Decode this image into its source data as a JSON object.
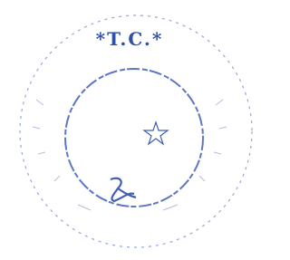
{
  "seal": {
    "top_text": "*T.C.*"
  }
}
